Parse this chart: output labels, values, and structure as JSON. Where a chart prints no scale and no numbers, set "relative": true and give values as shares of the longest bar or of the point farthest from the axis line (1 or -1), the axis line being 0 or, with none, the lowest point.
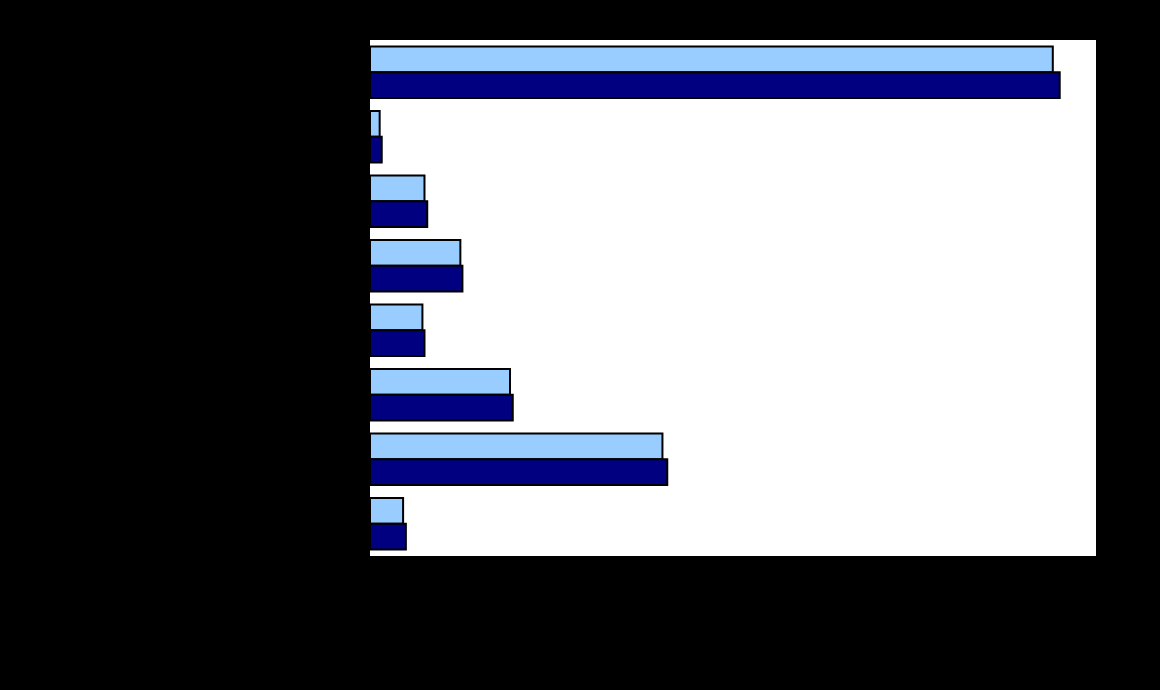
{
  "chart_data": {
    "type": "bar",
    "orientation": "horizontal",
    "relative": true,
    "categories": [
      null,
      null,
      null,
      null,
      null,
      null,
      null,
      null
    ],
    "series": [
      {
        "color": "#99ccff",
        "values": [
          0.99,
          0.014,
          0.079,
          0.131,
          0.076,
          0.203,
          0.424,
          0.048
        ]
      },
      {
        "color": "#000080",
        "values": [
          1,
          0.017,
          0.083,
          0.134,
          0.079,
          0.207,
          0.431,
          0.052
        ]
      }
    ]
  }
}
